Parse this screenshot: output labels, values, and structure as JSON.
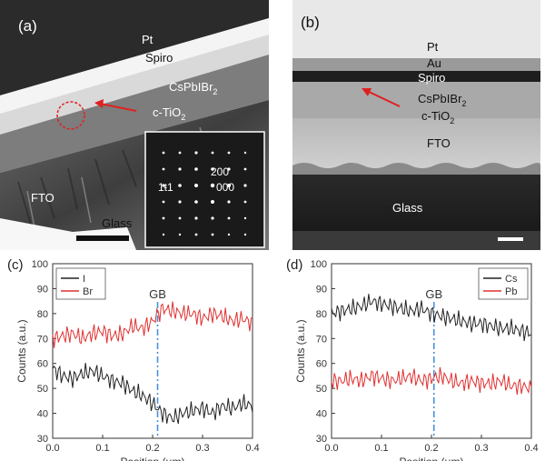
{
  "panel_a": {
    "label": "(a)",
    "layers": {
      "pt": "Pt",
      "spiro": "Spiro",
      "cspbibr2_base": "CsPbIBr",
      "cspbibr2_sub": "2",
      "ctio2_base": "c-TiO",
      "ctio2_sub": "2",
      "fto": "FTO",
      "glass": "Glass"
    },
    "diffraction": {
      "reflection_1": "200",
      "reflection_2": "1ŧ1",
      "reflection_3": "000"
    },
    "colors": {
      "arrow": "#e02020",
      "circle": "#e02020"
    }
  },
  "panel_b": {
    "label": "(b)",
    "layers": {
      "pt": "Pt",
      "au": "Au",
      "spiro": "Spiro",
      "cspbibr2_base": "CsPbIBr",
      "cspbibr2_sub": "2",
      "ctio2_base": "c-TiO",
      "ctio2_sub": "2",
      "fto": "FTO",
      "glass": "Glass"
    },
    "colors": {
      "arrow": "#e02020"
    }
  },
  "chart_data": [
    {
      "type": "line",
      "panel_label": "(c)",
      "xlabel": "Position (μm)",
      "ylabel": "Counts (a.u.)",
      "xlim": [
        0.0,
        0.4
      ],
      "ylim": [
        30,
        100
      ],
      "xticks": [
        "0.0",
        "0.1",
        "0.2",
        "0.3",
        "0.4"
      ],
      "yticks": [
        "30",
        "40",
        "50",
        "60",
        "70",
        "80",
        "90",
        "100"
      ],
      "annotation": {
        "text": "GB",
        "x": 0.21
      },
      "legend": "top-left",
      "series": [
        {
          "name": "I",
          "color": "#222222",
          "x": [
            0.0,
            0.02,
            0.04,
            0.06,
            0.08,
            0.1,
            0.12,
            0.14,
            0.16,
            0.18,
            0.2,
            0.22,
            0.24,
            0.26,
            0.28,
            0.3,
            0.32,
            0.34,
            0.36,
            0.38,
            0.4
          ],
          "values": [
            58,
            55,
            54,
            56,
            57,
            55,
            53,
            52,
            49,
            47,
            44,
            40,
            38,
            40,
            41,
            42,
            40,
            43,
            42,
            44,
            43
          ]
        },
        {
          "name": "Br",
          "color": "#e03030",
          "x": [
            0.0,
            0.02,
            0.04,
            0.06,
            0.08,
            0.1,
            0.12,
            0.14,
            0.16,
            0.18,
            0.2,
            0.22,
            0.24,
            0.26,
            0.28,
            0.3,
            0.32,
            0.34,
            0.36,
            0.38,
            0.4
          ],
          "values": [
            70,
            71,
            72,
            70,
            72,
            73,
            71,
            72,
            75,
            74,
            77,
            82,
            81,
            80,
            80,
            78,
            80,
            79,
            77,
            78,
            76
          ]
        }
      ]
    },
    {
      "type": "line",
      "panel_label": "(d)",
      "xlabel": "Position (μm)",
      "ylabel": "Counts (a.u.)",
      "xlim": [
        0.0,
        0.4
      ],
      "ylim": [
        30,
        100
      ],
      "xticks": [
        "0.0",
        "0.1",
        "0.2",
        "0.3",
        "0.4"
      ],
      "yticks": [
        "30",
        "40",
        "50",
        "60",
        "70",
        "80",
        "90",
        "100"
      ],
      "annotation": {
        "text": "GB",
        "x": 0.205
      },
      "legend": "top-right",
      "series": [
        {
          "name": "Cs",
          "color": "#222222",
          "x": [
            0.0,
            0.02,
            0.04,
            0.06,
            0.08,
            0.1,
            0.12,
            0.14,
            0.16,
            0.18,
            0.2,
            0.22,
            0.24,
            0.26,
            0.28,
            0.3,
            0.32,
            0.34,
            0.36,
            0.38,
            0.4
          ],
          "values": [
            80,
            81,
            82,
            83,
            85,
            84,
            83,
            82,
            81,
            82,
            80,
            79,
            78,
            77,
            76,
            76,
            75,
            74,
            74,
            73,
            72
          ]
        },
        {
          "name": "Pb",
          "color": "#e03030",
          "x": [
            0.0,
            0.02,
            0.04,
            0.06,
            0.08,
            0.1,
            0.12,
            0.14,
            0.16,
            0.18,
            0.2,
            0.22,
            0.24,
            0.26,
            0.28,
            0.3,
            0.32,
            0.34,
            0.36,
            0.38,
            0.4
          ],
          "values": [
            53,
            53,
            54,
            53,
            55,
            54,
            53,
            54,
            55,
            53,
            54,
            55,
            53,
            52,
            53,
            52,
            52,
            53,
            51,
            51,
            50
          ]
        }
      ]
    }
  ]
}
